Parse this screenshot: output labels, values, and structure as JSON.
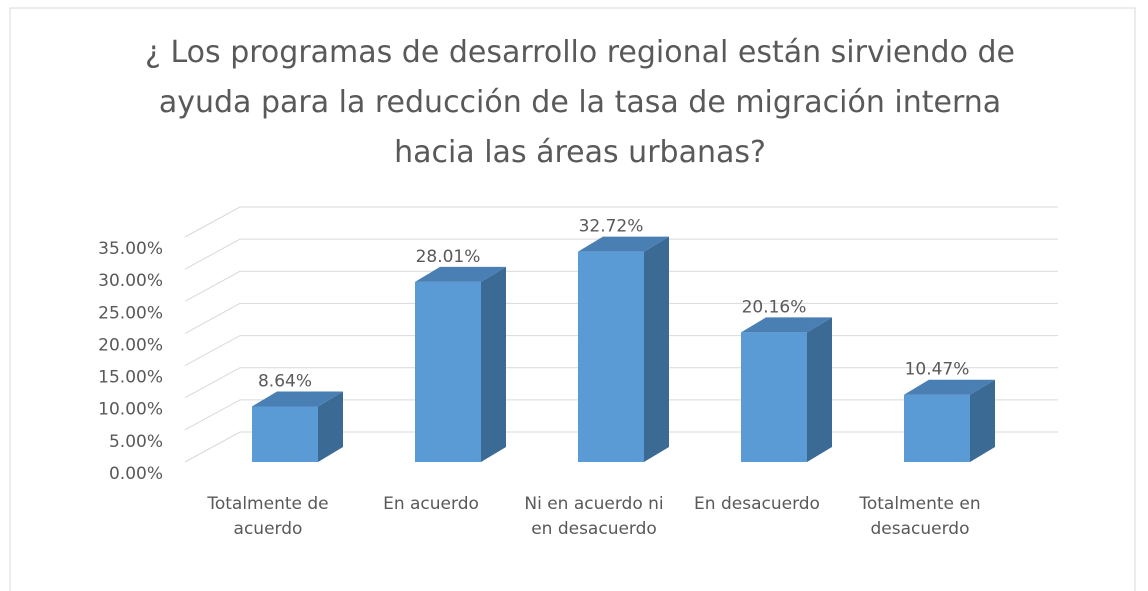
{
  "chart_data": {
    "type": "bar3d",
    "title": "¿ Los programas de desarrollo regional están sirviendo de ayuda para la reducción de la tasa de migración interna hacia las áreas urbanas?",
    "categories": [
      "Totalmente de acuerdo",
      "En acuerdo",
      "Ni en acuerdo ni en desacuerdo",
      "En desacuerdo",
      "Totalmente en desacuerdo"
    ],
    "values": [
      8.64,
      28.01,
      32.72,
      20.16,
      10.47
    ],
    "value_labels": [
      "8.64%",
      "28.01%",
      "32.72%",
      "20.16%",
      "10.47%"
    ],
    "color": "#5b9bd5",
    "ylim": [
      0,
      35
    ],
    "yticks": [
      {
        "value": 0,
        "label": "0.00%"
      },
      {
        "value": 5,
        "label": "5.00%"
      },
      {
        "value": 10,
        "label": "10.00%"
      },
      {
        "value": 15,
        "label": "15.00%"
      },
      {
        "value": 20,
        "label": "20.00%"
      },
      {
        "value": 25,
        "label": "25.00%"
      },
      {
        "value": 30,
        "label": "30.00%"
      },
      {
        "value": 35,
        "label": "35.00%"
      }
    ],
    "grid": true
  }
}
